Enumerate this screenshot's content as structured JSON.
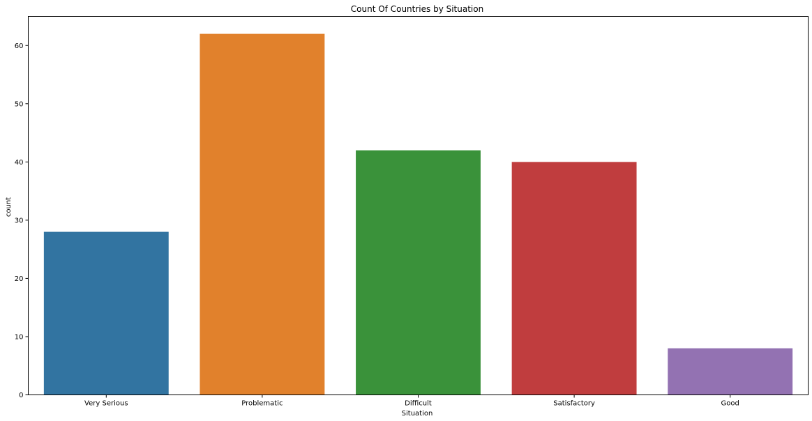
{
  "chart_data": {
    "type": "bar",
    "title": "Count Of Countries by Situation",
    "xlabel": "Situation",
    "ylabel": "count",
    "categories": [
      "Very Serious",
      "Problematic",
      "Difficult",
      "Satisfactory",
      "Good"
    ],
    "values": [
      28,
      62,
      42,
      40,
      8
    ],
    "colors": [
      "#3274a1",
      "#e1812c",
      "#3a923a",
      "#c03d3e",
      "#9372b2"
    ],
    "ylim": [
      0,
      65
    ],
    "yticks": [
      0,
      10,
      20,
      30,
      40,
      50,
      60
    ],
    "grid": false,
    "legend": "none"
  }
}
